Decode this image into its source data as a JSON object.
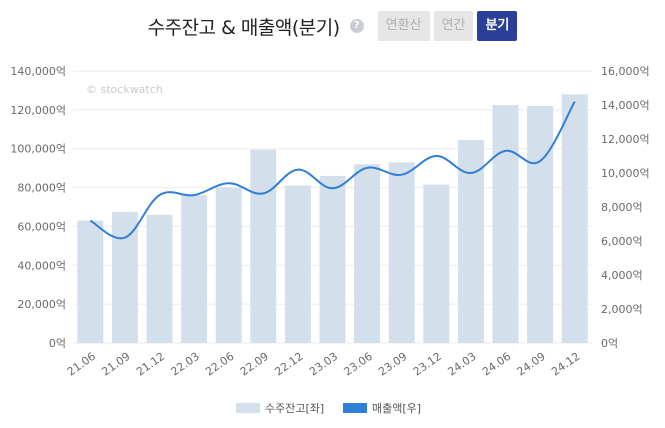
{
  "header": {
    "title": "수주잔고 & 매출액(분기)",
    "help_glyph": "?",
    "tabs": [
      {
        "label": "연환산",
        "active": false
      },
      {
        "label": "연간",
        "active": false
      },
      {
        "label": "분기",
        "active": true
      }
    ]
  },
  "watermark": "© stockwatch",
  "colors": {
    "bar": "#d3dfeb",
    "line": "#2f7fd8",
    "grid": "#ebebeb",
    "active_tab": "#2b3f98"
  },
  "chart_data": {
    "type": "bar",
    "categories": [
      "21.06",
      "21.09",
      "21.12",
      "22.03",
      "22.06",
      "22.09",
      "22.12",
      "23.03",
      "23.06",
      "23.09",
      "23.12",
      "24.03",
      "24.06",
      "24.09",
      "24.12"
    ],
    "series": [
      {
        "name": "수주잔고[좌]",
        "type": "bar",
        "axis": "left",
        "values": [
          63000,
          67500,
          66000,
          76000,
          80000,
          99500,
          81000,
          86000,
          92000,
          93000,
          81500,
          104500,
          122500,
          122000,
          128000
        ]
      },
      {
        "name": "매출액[우]",
        "type": "line",
        "axis": "right",
        "values": [
          7200,
          6200,
          8700,
          8700,
          9400,
          8800,
          10200,
          9100,
          10300,
          9900,
          11000,
          10000,
          11300,
          10700,
          14200
        ]
      }
    ],
    "y_left": {
      "min": 0,
      "max": 140000,
      "ticks": [
        "140,000억",
        "120,000억",
        "100,000억",
        "80,000억",
        "60,000억",
        "40,000억",
        "20,000억",
        "0억"
      ]
    },
    "y_right": {
      "min": 0,
      "max": 16000,
      "ticks": [
        "16,000억",
        "14,000억",
        "12,000억",
        "10,000억",
        "8,000억",
        "6,000억",
        "4,000억",
        "2,000억",
        "0억"
      ]
    },
    "grid": true,
    "legend_position": "bottom"
  }
}
